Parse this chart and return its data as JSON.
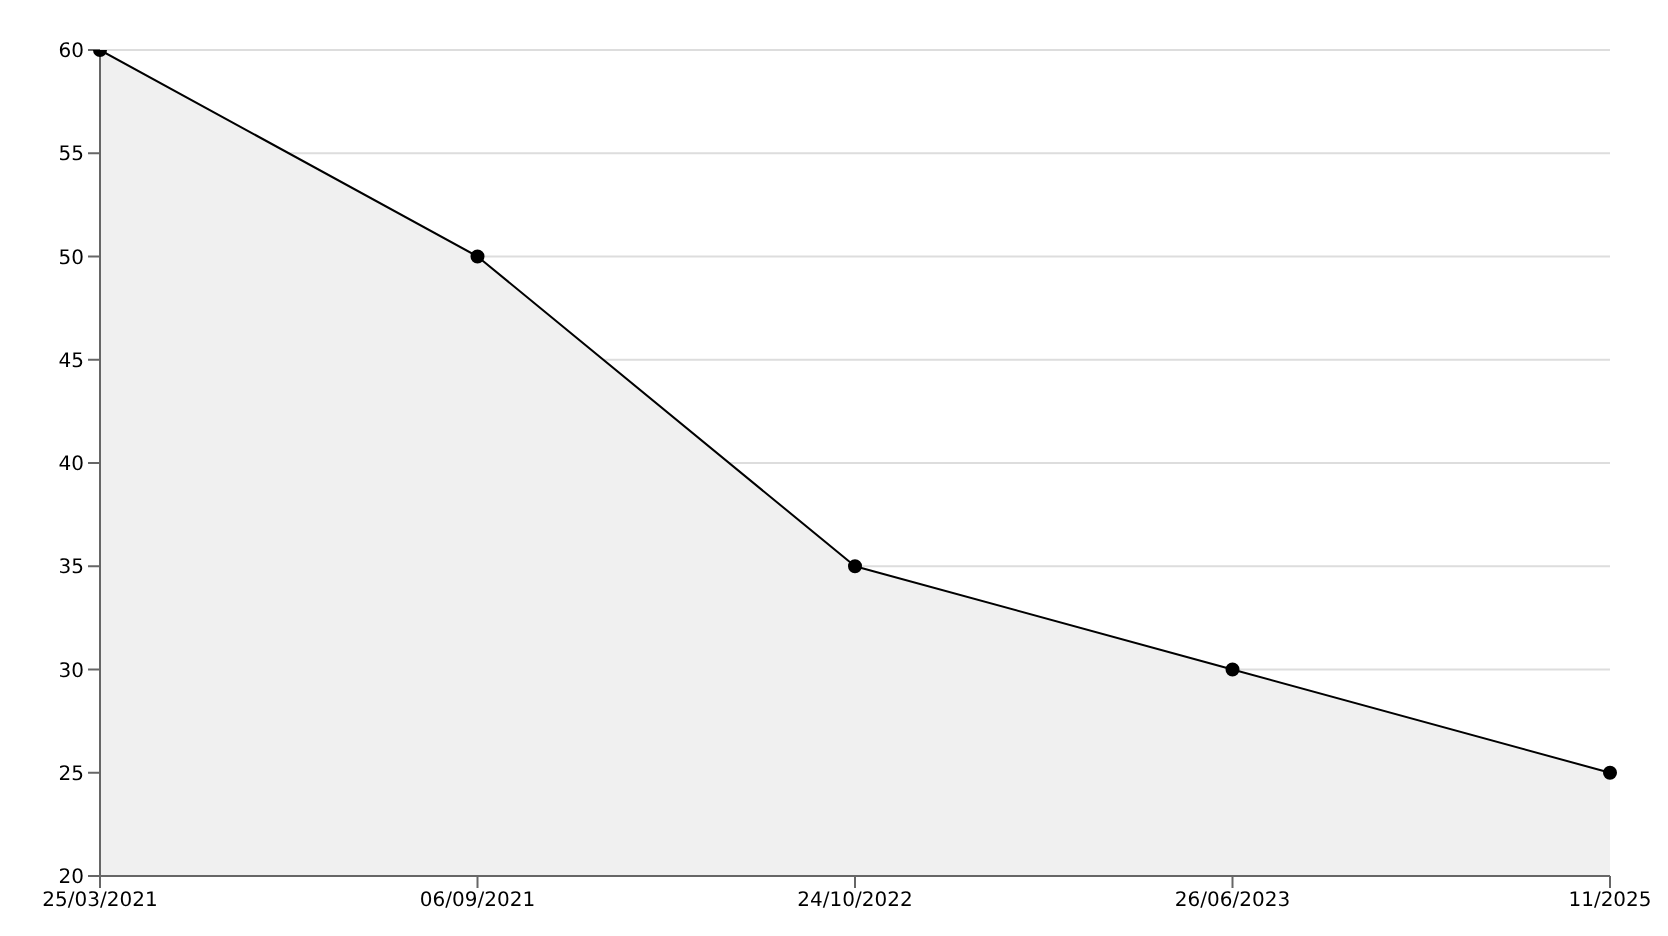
{
  "chart_data": {
    "type": "area",
    "categories": [
      "25/03/2021",
      "06/09/2021",
      "24/10/2022",
      "26/06/2023",
      "11/2025"
    ],
    "series": [
      {
        "color": "#f0f0f0",
        "values": [
          60,
          50,
          35,
          30,
          25
        ]
      }
    ],
    "ylim": [
      20,
      60
    ],
    "yticks": [
      20,
      25,
      30,
      35,
      40,
      45,
      50,
      55,
      60
    ],
    "grid": "y",
    "marker": "circle",
    "line_style": "solid",
    "legend": false
  }
}
